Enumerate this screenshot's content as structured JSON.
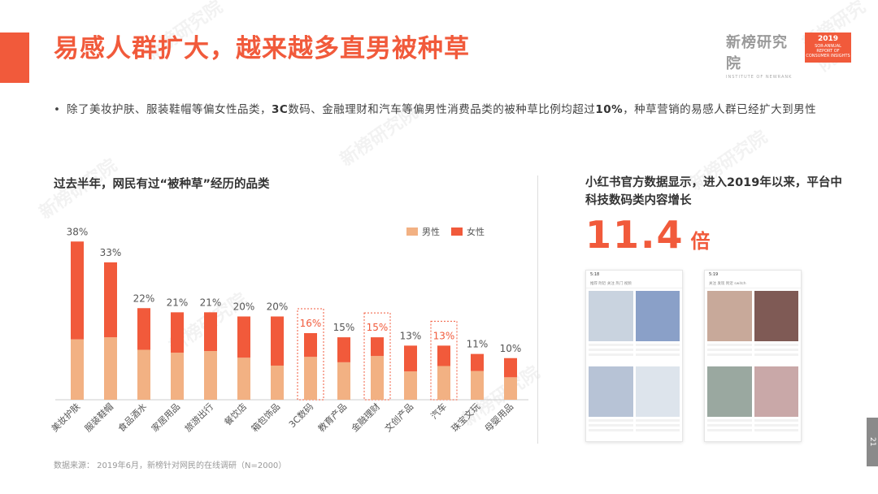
{
  "header": {
    "title": "易感人群扩大，越来越多直男被种草",
    "brand_name": "新榜研究院",
    "brand_sub": "INSTITUTE OF NEWRANK",
    "report_year": "2019",
    "report_lines": [
      "SOR-ANNUAL",
      "REPORT OF",
      "CONSUMER INSIGHTS"
    ]
  },
  "bullet": {
    "dot": "•",
    "p1": "除了美妆护肤、服装鞋帽等偏女性品类，",
    "b1": "3C",
    "p2": "数码、金融理财和汽车等偏男性消费品类的被种草比例均超过",
    "b2": "10%",
    "p3": "，种草营销的易感人群已经扩大到男性"
  },
  "left_section_title": "过去半年，网民有过“被种草”经历的品类",
  "right": {
    "heading": "小红书官方数据显示，进入2019年以来，平台中科技数码类内容增长",
    "number": "11.4",
    "unit": "倍"
  },
  "source": "数据来源：  2019年6月，新榜针对网民的在线调研（N=2000）",
  "page_number": "21",
  "colors": {
    "accent": "#f15a3b",
    "male": "#f2b183",
    "female": "#f15a3b",
    "label_default": "#555555",
    "label_highlight": "#f15a3b"
  },
  "chart_data": {
    "type": "bar",
    "stacked": true,
    "categories": [
      "美妆护肤",
      "服装鞋帽",
      "食品酒水",
      "家居用品",
      "旅游出行",
      "餐饮店",
      "箱包饰品",
      "3C数码",
      "教育产品",
      "金融理财",
      "文创产品",
      "汽车",
      "珠宝文玩",
      "母婴用品"
    ],
    "totals": [
      "38%",
      "33%",
      "22%",
      "21%",
      "21%",
      "20%",
      "20%",
      "16%",
      "15%",
      "15%",
      "13%",
      "13%",
      "11%",
      "10%"
    ],
    "total_values": [
      38,
      33,
      22,
      21,
      21,
      20,
      20,
      16,
      15,
      15,
      13,
      13,
      11,
      10
    ],
    "series": [
      {
        "name": "男性",
        "values": [
          14.5,
          15,
          12,
          11.3,
          11.7,
          10.1,
          8.2,
          10.3,
          9,
          10.5,
          6.8,
          8.1,
          6.9,
          5.4
        ]
      },
      {
        "name": "女性",
        "values": [
          23.5,
          18,
          10,
          9.7,
          9.3,
          9.9,
          11.8,
          5.7,
          6,
          4.5,
          6.2,
          4.9,
          4.1,
          4.6
        ]
      }
    ],
    "highlighted": [
      "3C数码",
      "金融理财",
      "汽车"
    ],
    "legend_position": "top-right",
    "ylim": [
      0,
      40
    ]
  },
  "phones": [
    {
      "time": "5:18",
      "tabs": "推荐  附近  关注  热门  视频",
      "tiles": [
        "#c9d3df",
        "#8aa0c8",
        "#b7c3d6",
        "#dde4ec"
      ]
    },
    {
      "time": "5:19",
      "tabs": "关注  发现  附近  switch",
      "tiles": [
        "#c8a99a",
        "#7f5a55",
        "#9aa8a0",
        "#c9a8a8"
      ]
    }
  ]
}
